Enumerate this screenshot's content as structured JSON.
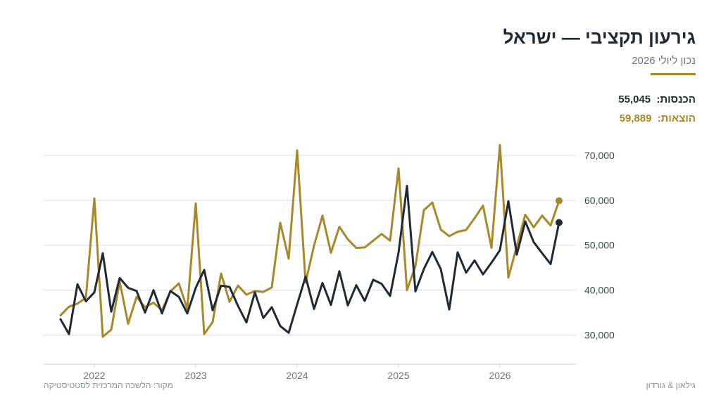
{
  "header": {
    "title": "גירעון תקציבי — ישראל",
    "subtitle": "נכון ליולי 2026"
  },
  "legend": {
    "income_label": "הכנסות:",
    "income_value": "55,045",
    "expense_label": "הוצאות:",
    "expense_value": "59,889"
  },
  "footer": {
    "source": "מקור: הלשכה המרכזית לסטטיסטיקה",
    "brand": "גילאון & גורדון"
  },
  "colors": {
    "income": "#1f2a36",
    "expense": "#a8892a",
    "accent": "#a8892a",
    "grid": "#d9dde2"
  },
  "chart_data": {
    "type": "line",
    "grid": true,
    "y_axis_position": "right",
    "ylim": [
      23500,
      72500
    ],
    "yticks": [
      30000,
      40000,
      50000,
      60000,
      70000
    ],
    "ytick_labels": [
      "30,000",
      "40,000",
      "50,000",
      "60,000",
      "70,000"
    ],
    "xlim": [
      "2021-07",
      "2026-10"
    ],
    "xticks": [
      "2022-01",
      "2023-01",
      "2024-01",
      "2025-01",
      "2026-01"
    ],
    "xtick_labels": [
      "2022",
      "2023",
      "2024",
      "2025",
      "2026"
    ],
    "x": [
      "2021-09",
      "2021-10",
      "2021-11",
      "2021-12",
      "2022-01",
      "2022-02",
      "2022-03",
      "2022-04",
      "2022-05",
      "2022-06",
      "2022-07",
      "2022-08",
      "2022-09",
      "2022-10",
      "2022-11",
      "2022-12",
      "2023-01",
      "2023-02",
      "2023-03",
      "2023-04",
      "2023-05",
      "2023-06",
      "2023-07",
      "2023-08",
      "2023-09",
      "2023-10",
      "2023-11",
      "2023-12",
      "2024-01",
      "2024-02",
      "2024-03",
      "2024-04",
      "2024-05",
      "2024-06",
      "2024-07",
      "2024-08",
      "2024-09",
      "2024-10",
      "2024-11",
      "2024-12",
      "2025-01",
      "2025-02",
      "2025-03",
      "2025-04",
      "2025-05",
      "2025-06",
      "2025-07",
      "2025-08",
      "2025-09",
      "2025-10",
      "2025-11",
      "2025-12",
      "2026-01",
      "2026-02",
      "2026-03",
      "2026-04",
      "2026-05",
      "2026-06",
      "2026-07",
      "2026-08"
    ],
    "series": [
      {
        "name": "הכנסות",
        "values": [
          33500,
          30200,
          41300,
          37500,
          39500,
          48200,
          35200,
          42700,
          40500,
          39800,
          35000,
          40000,
          34800,
          39800,
          38500,
          34800,
          40500,
          44500,
          35500,
          41000,
          40700,
          36500,
          32800,
          39500,
          33800,
          36200,
          32000,
          30500,
          36800,
          43000,
          35800,
          41600,
          36700,
          44200,
          36600,
          41100,
          37600,
          42300,
          41400,
          38700,
          48300,
          63200,
          39700,
          44700,
          48500,
          44700,
          35700,
          48400,
          43900,
          46600,
          43500,
          46100,
          48900,
          59800,
          47900,
          55300,
          50700,
          48200,
          45800,
          55045
        ]
      },
      {
        "name": "הוצאות",
        "values": [
          34400,
          36300,
          37000,
          38300,
          60400,
          29600,
          31200,
          41900,
          32500,
          38500,
          36200,
          37200,
          35500,
          39700,
          41500,
          35800,
          59300,
          30200,
          32900,
          43700,
          37400,
          41000,
          39000,
          39800,
          39600,
          40600,
          55000,
          47000,
          71100,
          41700,
          49900,
          56600,
          48300,
          54100,
          51300,
          49400,
          49500,
          51000,
          52500,
          51000,
          67100,
          40000,
          45300,
          57800,
          59500,
          53500,
          52000,
          53000,
          53400,
          56000,
          58800,
          49400,
          72300,
          42800,
          49800,
          56800,
          54000,
          56600,
          54400,
          59889
        ]
      }
    ]
  }
}
